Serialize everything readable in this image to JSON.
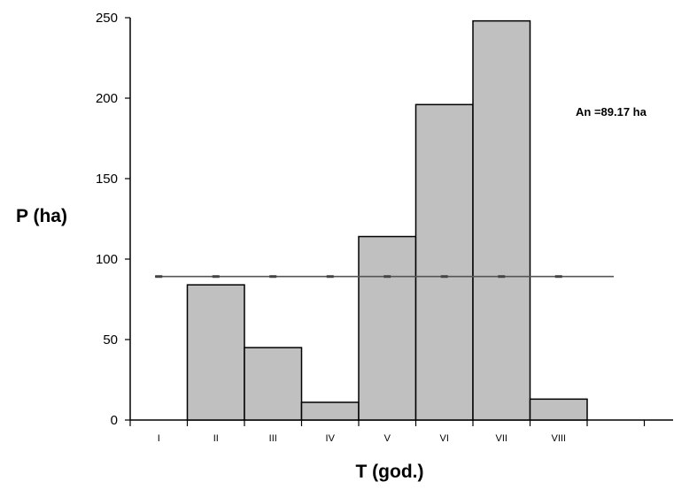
{
  "chart_data": {
    "type": "bar",
    "categories": [
      "I",
      "II",
      "III",
      "IV",
      "V",
      "VI",
      "VII",
      "VIII"
    ],
    "values": [
      0,
      84,
      45,
      11,
      114,
      196,
      248,
      13
    ],
    "xlabel": "T (god.)",
    "ylabel": "P (ha)",
    "ylim": [
      0,
      250
    ],
    "yticks": [
      0,
      50,
      100,
      150,
      200,
      250
    ],
    "reference_line": {
      "value": 89.17
    },
    "annotation": "An =89.17 ha",
    "bar_color": "#c0c0c0",
    "line_color": "#555555",
    "grid": false
  }
}
